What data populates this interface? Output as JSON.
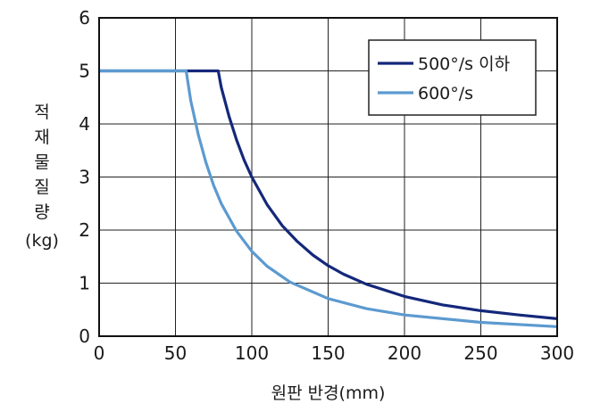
{
  "chart_data": {
    "type": "line",
    "title": "",
    "xlabel": "원판 반경(mm)",
    "ylabel_chars": [
      "적",
      "재",
      "물",
      "질",
      "량"
    ],
    "ylabel_unit": "(kg)",
    "xlim": [
      0,
      300
    ],
    "ylim": [
      0,
      6
    ],
    "x_ticks": [
      "0",
      "50",
      "100",
      "150",
      "200",
      "250",
      "300"
    ],
    "y_ticks": [
      "0",
      "1",
      "2",
      "3",
      "4",
      "5",
      "6"
    ],
    "grid": true,
    "legend_position": "top-right",
    "series": [
      {
        "name": "500°/s 이하",
        "color": "#14287a",
        "x": [
          0,
          78,
          80,
          85,
          90,
          95,
          100,
          110,
          120,
          130,
          140,
          150,
          160,
          175,
          200,
          225,
          250,
          275,
          300
        ],
        "y": [
          5,
          5,
          4.69,
          4.15,
          3.7,
          3.32,
          3.0,
          2.48,
          2.08,
          1.78,
          1.53,
          1.33,
          1.17,
          0.98,
          0.75,
          0.59,
          0.48,
          0.4,
          0.33
        ]
      },
      {
        "name": "600°/s",
        "color": "#5c9ad0",
        "x": [
          0,
          57,
          60,
          65,
          70,
          75,
          80,
          90,
          100,
          110,
          125,
          150,
          175,
          200,
          250,
          300
        ],
        "y": [
          5,
          5,
          4.44,
          3.79,
          3.27,
          2.84,
          2.5,
          1.98,
          1.6,
          1.32,
          1.02,
          0.71,
          0.52,
          0.4,
          0.26,
          0.18
        ]
      }
    ]
  }
}
